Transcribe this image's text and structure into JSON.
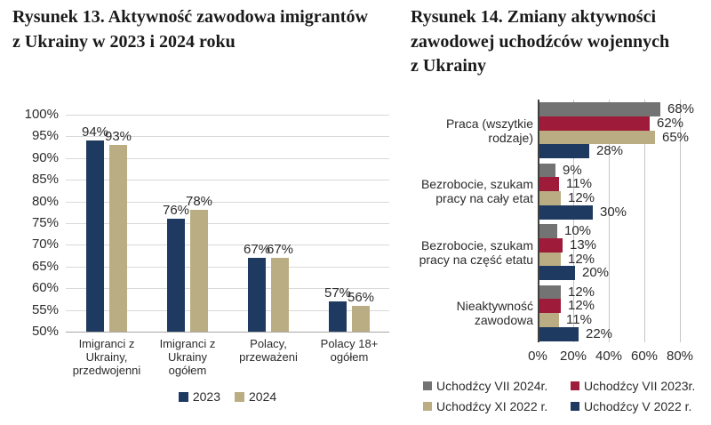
{
  "figure13": {
    "title_display": "Rysunek 13. Aktywność zawodowa imigrantów\nz Ukrainy w 2023 i 2024 roku"
  },
  "figure14": {
    "title_display": "Rysunek 14. Zmiany aktywności\nzawodowej uchodźców wojennych\nz Ukrainy"
  },
  "chart_data": [
    {
      "type": "bar",
      "orientation": "vertical",
      "title": "Rysunek 13. Aktywność zawodowa imigrantów z Ukrainy w 2023 i 2024 roku",
      "categories": [
        "Imigranci z\nUkrainy,\nprzedwojenni",
        "Imigranci z\nUkrainy\nogółem",
        "Polacy,\nprzeważeni",
        "Polacy 18+\nogółem"
      ],
      "series": [
        {
          "name": "2023",
          "color": "#1f3a60",
          "values": [
            94,
            76,
            67,
            57
          ]
        },
        {
          "name": "2024",
          "color": "#bbad83",
          "values": [
            93,
            78,
            67,
            56
          ]
        }
      ],
      "ylim": [
        50,
        100
      ],
      "ytick_step": 5,
      "tick_suffix": "%",
      "grid": true,
      "legend_position": "bottom",
      "data_labels": true
    },
    {
      "type": "bar",
      "orientation": "horizontal",
      "title": "Rysunek 14. Zmiany aktywności zawodowej uchodźców wojennych z Ukrainy",
      "categories": [
        "Praca (wszytkie\nrodzaje)",
        "Bezrobocie, szukam\npracy na cały etat",
        "Bezrobocie, szukam\npracy na część etatu",
        "Nieaktywność\nzawodowa"
      ],
      "series": [
        {
          "name": "Uchodźcy VII 2024r.",
          "color": "#737373",
          "values": [
            68,
            9,
            10,
            12
          ]
        },
        {
          "name": "Uchodźcy VII 2023r.",
          "color": "#9e1b39",
          "values": [
            62,
            11,
            13,
            12
          ]
        },
        {
          "name": "Uchodźcy XI 2022 r.",
          "color": "#bbad83",
          "values": [
            65,
            12,
            12,
            11
          ]
        },
        {
          "name": "Uchodźcy V 2022 r.",
          "color": "#1f3a60",
          "values": [
            28,
            30,
            20,
            22
          ]
        }
      ],
      "xlim": [
        0,
        80
      ],
      "xtick_step": 20,
      "tick_suffix": "%",
      "grid": true,
      "legend_position": "bottom",
      "data_labels": true
    }
  ],
  "colors": {
    "navy": "#1f3a60",
    "tan": "#bbad83",
    "gray": "#737373",
    "crimson": "#9e1b39",
    "gridline_light": "#d9d9d9",
    "gridline_right": "#c6c6c6",
    "baseline": "#a6a6a6",
    "axis": "#404040",
    "text": "#2b2b2b"
  }
}
